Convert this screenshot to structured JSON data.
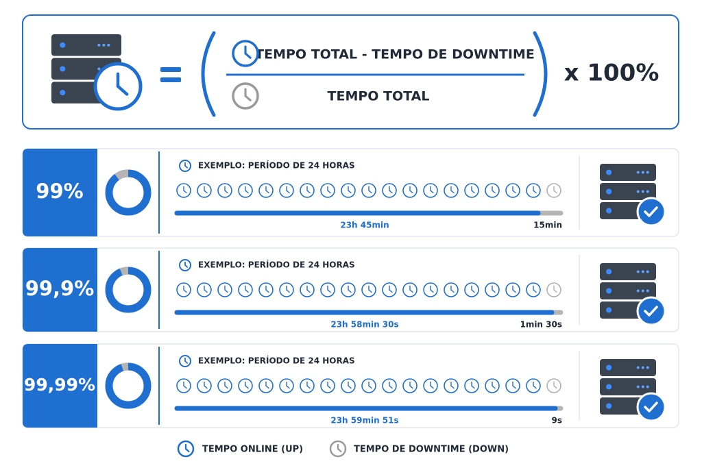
{
  "formula": {
    "numerator": "TEMPO TOTAL - TEMPO DE DOWNTIME",
    "denominator": "TEMPO TOTAL",
    "multiplier": "x 100%"
  },
  "rows": [
    {
      "percent": "99%",
      "example": "EXEMPLO: PERÍODO DE 24 HORAS",
      "uptime": "23h 45min",
      "downtime": "15min"
    },
    {
      "percent": "99,9%",
      "example": "EXEMPLO: PERÍODO DE 24 HORAS",
      "uptime": "23h 58min 30s",
      "downtime": "1min 30s"
    },
    {
      "percent": "99,99%",
      "example": "EXEMPLO: PERÍODO DE 24 HORAS",
      "uptime": "23h 59min 51s",
      "downtime": "9s"
    }
  ],
  "legend": {
    "up": "TEMPO ONLINE (UP)",
    "down": "TEMPO DE DOWNTIME (DOWN)"
  }
}
